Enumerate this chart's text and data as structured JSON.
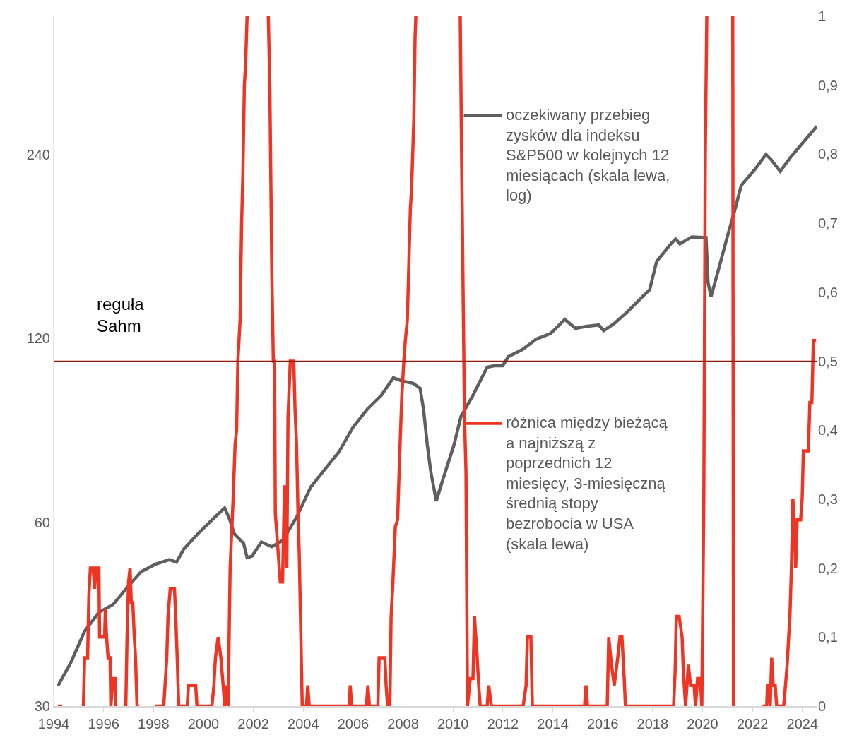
{
  "chart_data": {
    "type": "line",
    "xlim": [
      1994,
      2024.6
    ],
    "xticks": [
      1994,
      1996,
      1998,
      2000,
      2002,
      2004,
      2006,
      2008,
      2010,
      2012,
      2014,
      2016,
      2018,
      2020,
      2022,
      2024
    ],
    "ylim": [
      30,
      404
    ],
    "yticks": [
      30,
      60,
      120,
      240
    ],
    "log": "y",
    "y2lim": [
      0,
      1
    ],
    "y2ticks": [
      0,
      {
        "value": 0.1,
        "label": "0,1"
      },
      {
        "value": 0.2,
        "label": "0,2"
      },
      {
        "value": 0.3,
        "label": "0,3"
      },
      {
        "value": 0.4,
        "label": "0,4"
      },
      {
        "value": 0.5,
        "label": "0,5"
      },
      {
        "value": 0.6,
        "label": "0,6"
      },
      {
        "value": 0.7,
        "label": "0,7"
      },
      {
        "value": 0.8,
        "label": "0,8"
      },
      {
        "value": 0.9,
        "label": "0,9"
      },
      1
    ],
    "legend": "top right",
    "ref_lines": [
      {
        "axis": "y2",
        "value": 0.5,
        "label": "reguła Sahm",
        "color": "#8b1a0a"
      }
    ],
    "series": [
      {
        "name": "oczekiwany przebieg zysków dla indeksu S&P500 w kolejnych 12 miesiącach (skala lewa, log)",
        "color": "#5f5f5f",
        "x": [
          1994.17,
          1994.68,
          1995.24,
          1995.81,
          1996.38,
          1996.94,
          1997.51,
          1998.07,
          1998.64,
          1998.92,
          1999.21,
          1999.77,
          2000.34,
          2000.85,
          2001.04,
          2001.24,
          2001.61,
          2001.75,
          2001.95,
          2002.32,
          2002.74,
          2003.17,
          2003.73,
          2004.3,
          2004.86,
          2005.43,
          2006.0,
          2006.56,
          2007.13,
          2007.61,
          2007.98,
          2008.4,
          2008.68,
          2008.82,
          2008.97,
          2009.11,
          2009.33,
          2009.59,
          2010.04,
          2010.32,
          2010.8,
          2011.37,
          2011.65,
          2011.99,
          2012.22,
          2012.78,
          2013.35,
          2013.92,
          2014.48,
          2014.91,
          2015.33,
          2015.84,
          2016.04,
          2016.46,
          2017.03,
          2017.59,
          2017.88,
          2018.16,
          2018.73,
          2018.92,
          2019.09,
          2019.57,
          2020.14,
          2020.22,
          2020.34,
          2020.65,
          2020.99,
          2021.27,
          2021.55,
          2022.12,
          2022.54,
          2022.74,
          2023.11,
          2023.53,
          2024.1,
          2024.58
        ],
        "values": [
          32.4,
          35.3,
          39.8,
          42.7,
          44.0,
          46.9,
          49.8,
          51.2,
          52.1,
          51.6,
          54.2,
          57.4,
          60.5,
          63.3,
          60.8,
          57.4,
          55.4,
          52.5,
          52.8,
          55.7,
          54.7,
          56.0,
          61.1,
          68.5,
          73.2,
          78.2,
          85.9,
          91.8,
          96.8,
          103.4,
          102.1,
          101.3,
          99.4,
          91.8,
          80.3,
          72.6,
          65.0,
          70.4,
          80.3,
          89.4,
          96.8,
          107.6,
          108.2,
          108.2,
          112.0,
          115.0,
          119.7,
          122.3,
          128.9,
          124.6,
          125.5,
          126.2,
          123.5,
          126.9,
          133.1,
          140.4,
          144.1,
          160.3,
          171.3,
          174.5,
          171.3,
          175.9,
          175.4,
          148.0,
          140.4,
          156.1,
          175.9,
          193.0,
          213.5,
          227.5,
          240,
          235.6,
          225.2,
          237.5,
          253.1,
          266.9
        ]
      },
      {
        "name": "różnica między bieżącą a najniższą z poprzednich 12 miesięcy, 3-miesięczną średnią stopy bezrobocia w USA (skala lewa)",
        "color": "#ee3524",
        "axis": "y2",
        "x": [
          1994.17,
          1994.34,
          1994.76,
          1995.19,
          1995.24,
          1995.36,
          1995.41,
          1995.47,
          1995.58,
          1995.64,
          1995.7,
          1995.81,
          1995.84,
          1996.04,
          1996.07,
          1996.12,
          1996.18,
          1996.26,
          1996.29,
          1996.38,
          1996.46,
          1996.49,
          1996.7,
          1996.89,
          1996.94,
          1997.0,
          1997.06,
          1997.11,
          1997.17,
          1997.23,
          1997.28,
          1997.34,
          1997.42,
          1997.6,
          1998.07,
          1998.3,
          1998.41,
          1998.53,
          1998.58,
          1998.67,
          1998.84,
          1998.89,
          1998.95,
          1999.01,
          1999.35,
          1999.4,
          1999.69,
          1999.74,
          2000.34,
          2000.42,
          2000.48,
          2000.59,
          2000.7,
          2000.79,
          2000.85,
          2000.9,
          2000.99,
          2001.07,
          2001.19,
          2001.27,
          2001.33,
          2001.38,
          2001.47,
          2001.53,
          2001.58,
          2001.64,
          2001.69,
          2001.75,
          2002.2,
          2002.6,
          2002.66,
          2002.74,
          2002.8,
          2002.85,
          2002.88,
          2003.0,
          2003.08,
          2003.17,
          2003.25,
          2003.34,
          2003.39,
          2003.48,
          2003.62,
          2003.67,
          2003.73,
          2003.79,
          2003.84,
          2003.96,
          2004.13,
          2004.18,
          2004.24,
          2004.3,
          2005.85,
          2005.88,
          2005.94,
          2006.53,
          2006.59,
          2006.65,
          2006.99,
          2007.04,
          2007.27,
          2007.32,
          2007.38,
          2007.47,
          2007.52,
          2007.58,
          2007.69,
          2007.78,
          2007.86,
          2007.95,
          2008.03,
          2008.09,
          2008.17,
          2008.29,
          2008.34,
          2008.43,
          2008.48,
          2008.51,
          2009.5,
          2010.29,
          2010.35,
          2010.46,
          2010.52,
          2010.58,
          2010.69,
          2010.8,
          2010.86,
          2010.97,
          2011.03,
          2011.09,
          2011.37,
          2011.43,
          2011.54,
          2012.81,
          2012.93,
          2012.98,
          2013.12,
          2013.18,
          2015.27,
          2015.33,
          2015.39,
          2016.18,
          2016.24,
          2016.35,
          2016.46,
          2016.6,
          2016.69,
          2016.77,
          2016.86,
          2016.91,
          2018.84,
          2018.9,
          2018.95,
          2019.06,
          2019.18,
          2019.23,
          2019.32,
          2019.43,
          2019.52,
          2019.66,
          2019.72,
          2019.8,
          2019.91,
          2019.97,
          2020.05,
          2020.11,
          2020.17,
          2020.6,
          2021.21,
          2021.24,
          2022.0,
          2022.4,
          2022.57,
          2022.6,
          2022.68,
          2022.71,
          2022.77,
          2022.83,
          2022.91,
          2022.97,
          2023.25,
          2023.3,
          2023.39,
          2023.45,
          2023.5,
          2023.56,
          2023.62,
          2023.67,
          2023.73,
          2023.79,
          2023.93,
          2023.99,
          2024.04,
          2024.24,
          2024.3,
          2024.38,
          2024.44,
          2024.55
        ],
        "values": [
          0,
          0,
          null,
          0,
          0.07,
          0.07,
          0.16,
          0.2,
          0.2,
          0.17,
          0.2,
          0.2,
          0.1,
          0.1,
          0.14,
          0.1,
          0.07,
          0.07,
          0,
          0.04,
          0.04,
          0,
          null,
          0,
          0.1,
          0.18,
          0.2,
          0.15,
          0.15,
          0.1,
          0.07,
          0,
          0,
          null,
          0,
          0,
          0,
          0.07,
          0.13,
          0.17,
          0.17,
          0.13,
          0.07,
          0,
          0,
          0.03,
          0.03,
          0,
          0,
          0.03,
          0.07,
          0.1,
          0.07,
          0.03,
          0,
          0.03,
          0,
          0.2,
          0.3,
          0.38,
          0.4,
          0.5,
          0.56,
          0.7,
          0.77,
          0.9,
          0.93,
          1.0,
          null,
          1.0,
          0.9,
          0.63,
          0.5,
          0.5,
          0.28,
          0.22,
          0.18,
          0.18,
          0.32,
          0.2,
          0.42,
          0.5,
          0.5,
          0.43,
          0.38,
          0.28,
          0.22,
          0,
          0,
          0.03,
          0,
          0,
          0,
          0.03,
          0,
          0,
          0.03,
          0,
          0,
          0.07,
          0.07,
          0.03,
          0,
          0,
          0.13,
          0.17,
          0.26,
          0.27,
          0.36,
          0.45,
          0.5,
          0.53,
          0.56,
          0.72,
          0.75,
          0.85,
          0.97,
          1.0,
          null,
          1.0,
          0.78,
          0.42,
          0.34,
          0,
          0.04,
          0.04,
          0.13,
          0.07,
          0.03,
          0,
          0,
          0.03,
          0,
          0,
          0.03,
          0.1,
          0.1,
          0,
          0,
          0.03,
          0,
          0,
          0.1,
          0.06,
          0.03,
          0.07,
          0.1,
          0.1,
          0.04,
          0,
          0,
          0.05,
          0.13,
          0.13,
          0.1,
          0.05,
          0,
          0.06,
          0.03,
          0.03,
          0,
          0.04,
          0.04,
          0,
          0.3,
          0.8,
          1.0,
          null,
          1.0,
          0,
          null,
          0,
          0,
          0.03,
          0.03,
          0,
          0.07,
          0.03,
          0.03,
          0,
          0,
          0.02,
          0.06,
          0.1,
          0.13,
          0.2,
          0.3,
          0.26,
          0.2,
          0.27,
          0.27,
          0.3,
          0.37,
          0.37,
          0.44,
          0.44,
          0.53,
          0.53
        ]
      }
    ]
  }
}
